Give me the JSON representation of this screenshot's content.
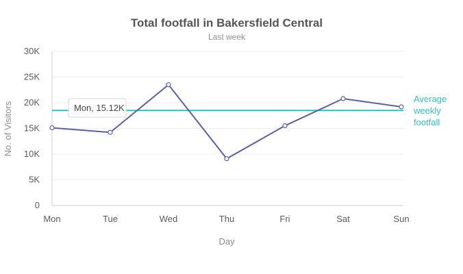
{
  "chart_data": {
    "type": "line",
    "title": "Total footfall in Bakersfield Central",
    "subtitle": "Last week",
    "xlabel": "Day",
    "ylabel": "No. of Visitors",
    "categories": [
      "Mon",
      "Tue",
      "Wed",
      "Thu",
      "Fri",
      "Sat",
      "Sun"
    ],
    "series": [
      {
        "values": [
          15123,
          14233,
          23507,
          9110,
          15529,
          20803,
          19202
        ]
      }
    ],
    "ylim": [
      0,
      30000
    ],
    "yticks": [
      0,
      5000,
      10000,
      15000,
      20000,
      25000,
      30000
    ],
    "ytick_labels": [
      "0",
      "5K",
      "10K",
      "15K",
      "20K",
      "25K",
      "30K"
    ],
    "trendline": {
      "value": 18500,
      "label_lines": [
        "Average",
        "weekly",
        "footfall"
      ]
    },
    "tooltip": {
      "text": "Mon, 15.12K"
    },
    "grid": true,
    "colors": {
      "line": "#5b5ea6",
      "trendline": "#29c3be",
      "grid": "#eeeeee",
      "axis": "#cccccc"
    }
  }
}
